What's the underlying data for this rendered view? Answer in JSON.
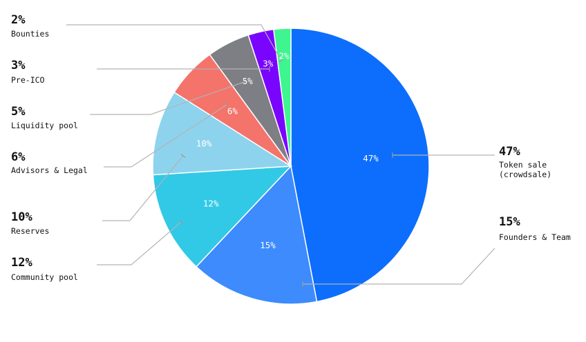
{
  "chart_data": {
    "type": "pie",
    "title": "",
    "start_angle_deg": 0,
    "direction": "clockwise",
    "slices": [
      {
        "label": "Token sale (crowdsale)",
        "label_lines": [
          "Token sale",
          "(crowdsale)"
        ],
        "value": 47,
        "display": "47%",
        "color": "#0d6efd"
      },
      {
        "label": "Founders & Team",
        "label_lines": [
          "Founders & Team"
        ],
        "value": 15,
        "display": "15%",
        "color": "#3d8bfd"
      },
      {
        "label": "Community pool",
        "label_lines": [
          "Community pool"
        ],
        "value": 12,
        "display": "12%",
        "color": "#32c9e6"
      },
      {
        "label": "Reserves",
        "label_lines": [
          "Reserves"
        ],
        "value": 10,
        "display": "10%",
        "color": "#8ed3ed"
      },
      {
        "label": "Advisors & Legal",
        "label_lines": [
          "Advisors & Legal"
        ],
        "value": 6,
        "display": "6%",
        "color": "#f4736b"
      },
      {
        "label": "Liquidity pool",
        "label_lines": [
          "Liquidity pool"
        ],
        "value": 5,
        "display": "5%",
        "color": "#7d7f84"
      },
      {
        "label": "Pre-ICO",
        "label_lines": [
          "Pre-ICO"
        ],
        "value": 3,
        "display": "3%",
        "color": "#7a05ff"
      },
      {
        "label": "Bounties",
        "label_lines": [
          "Bounties"
        ],
        "value": 2,
        "display": "2%",
        "color": "#3ef58f"
      }
    ]
  }
}
